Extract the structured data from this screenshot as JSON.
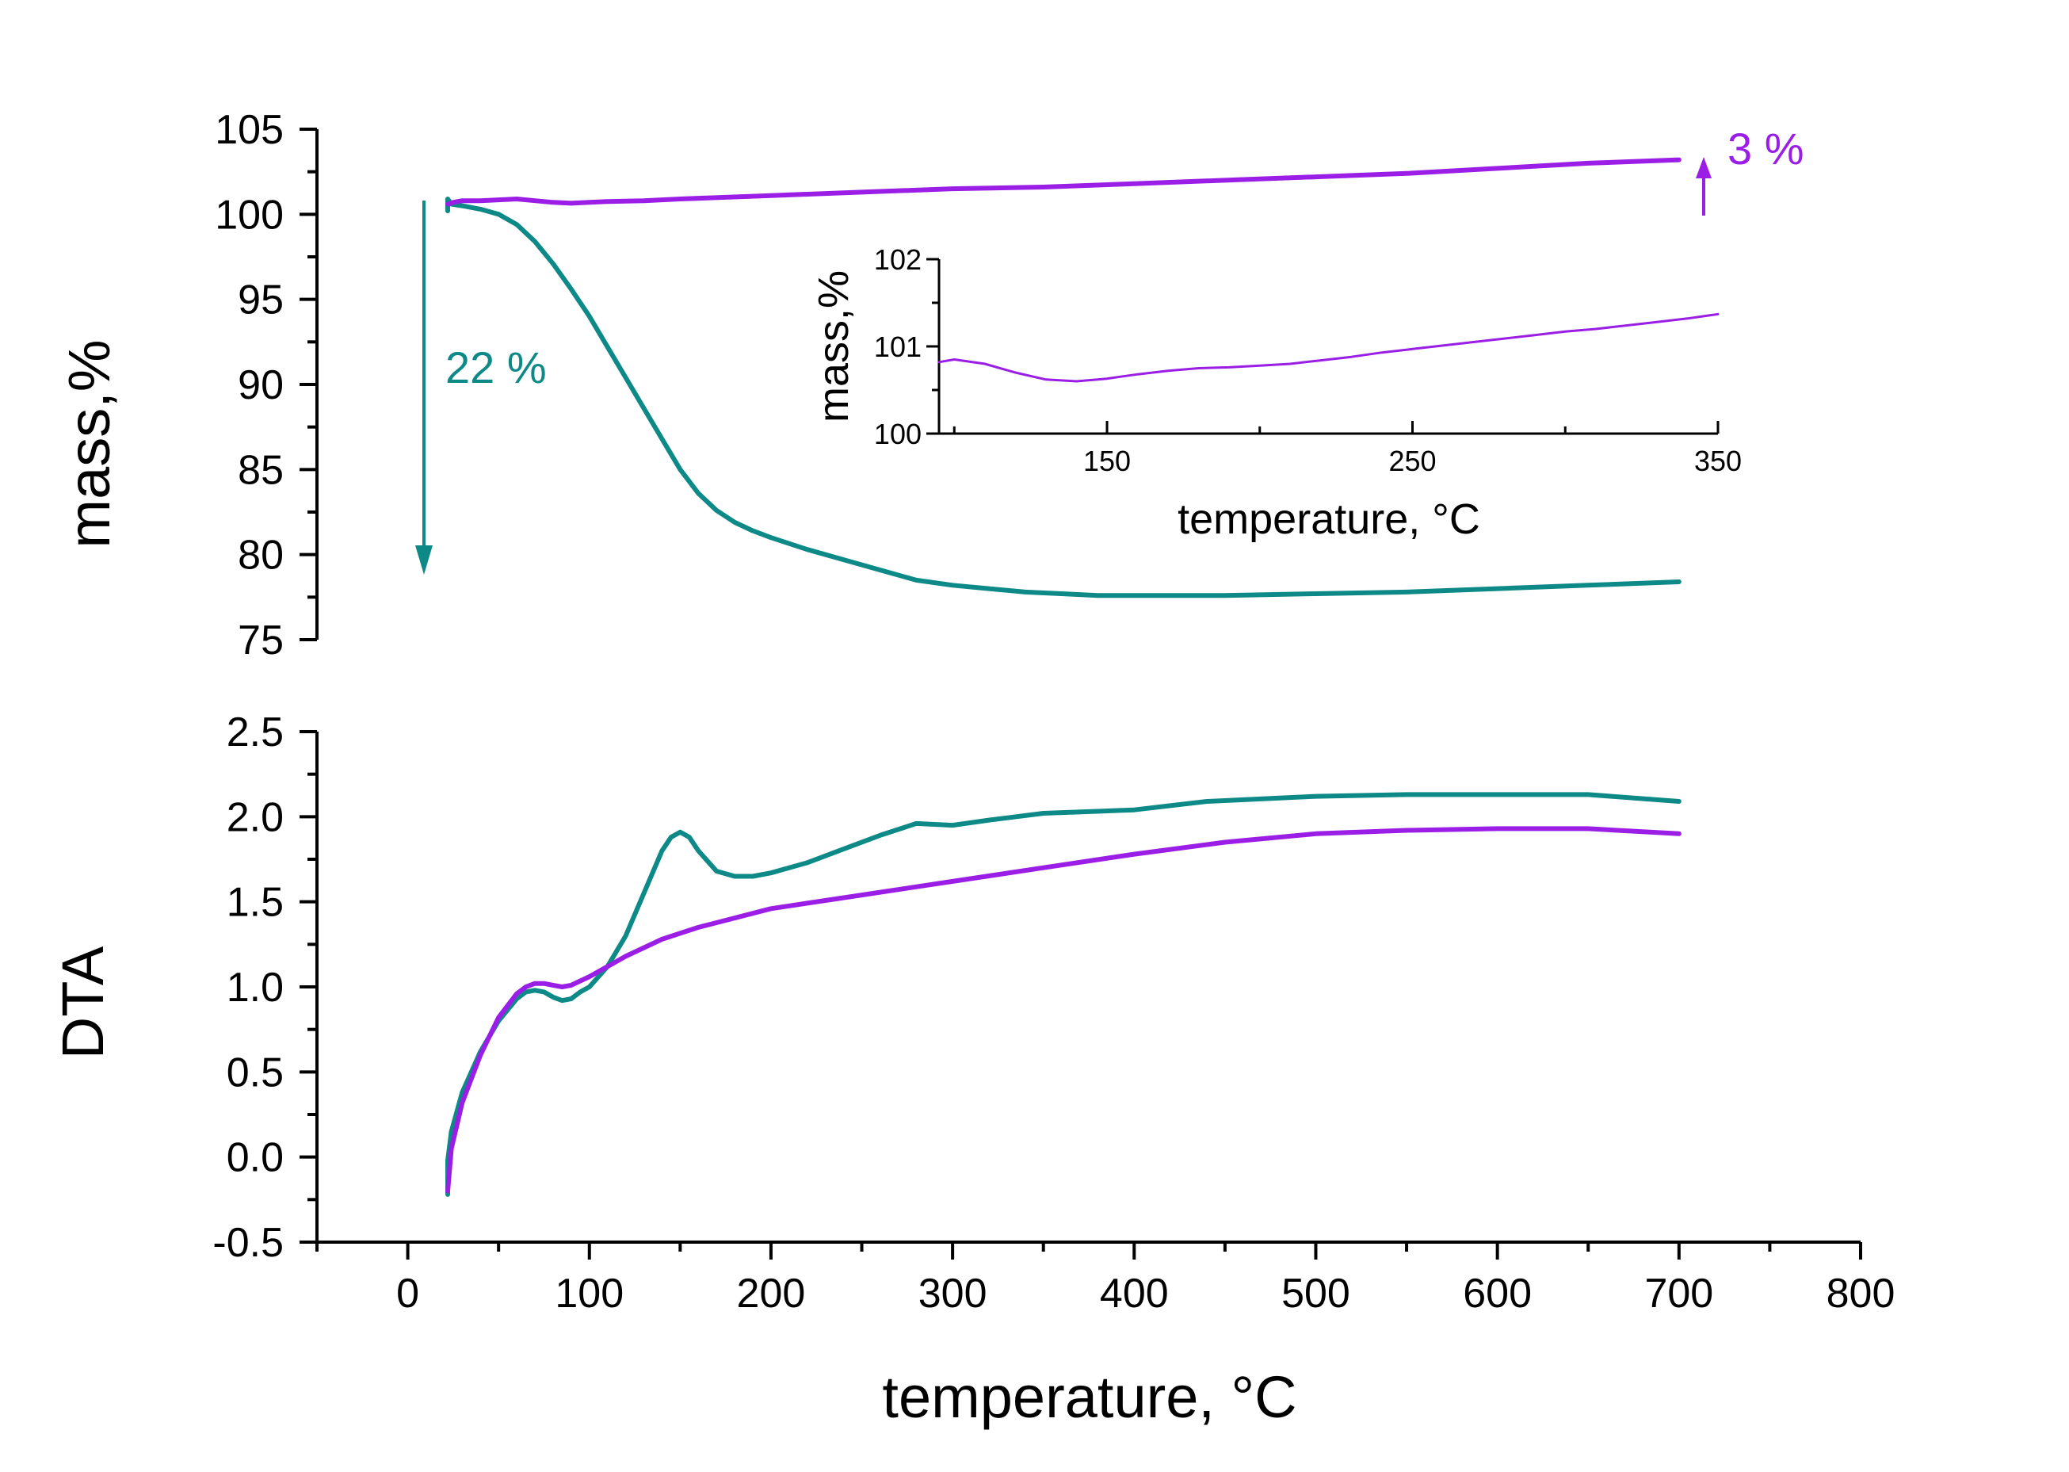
{
  "colors": {
    "teal": "#0d8a87",
    "purple": "#9b1ee6",
    "axis": "#000000"
  },
  "chart_data": [
    {
      "id": "mass",
      "type": "line",
      "xlabel": "",
      "ylabel": "mass,%",
      "xlim": [
        -50,
        800
      ],
      "ylim": [
        75,
        105
      ],
      "yticks": [
        75,
        80,
        85,
        90,
        95,
        100,
        105
      ],
      "series": [
        {
          "name": "teal",
          "color": "#0d8a87",
          "x": [
            22,
            22,
            24,
            30,
            40,
            50,
            60,
            70,
            80,
            90,
            100,
            110,
            120,
            130,
            140,
            150,
            160,
            170,
            180,
            190,
            200,
            220,
            240,
            260,
            280,
            300,
            320,
            340,
            360,
            380,
            400,
            450,
            500,
            550,
            600,
            650,
            700
          ],
          "y": [
            100.2,
            100.9,
            100.6,
            100.5,
            100.3,
            100.0,
            99.4,
            98.4,
            97.1,
            95.6,
            94.0,
            92.2,
            90.4,
            88.6,
            86.8,
            85.0,
            83.6,
            82.6,
            81.9,
            81.4,
            81.0,
            80.3,
            79.7,
            79.1,
            78.5,
            78.2,
            78.0,
            77.8,
            77.7,
            77.6,
            77.6,
            77.6,
            77.7,
            77.8,
            78.0,
            78.2,
            78.4
          ]
        },
        {
          "name": "purple",
          "color": "#9b1ee6",
          "x": [
            22,
            25,
            30,
            40,
            50,
            60,
            70,
            80,
            90,
            100,
            110,
            130,
            150,
            200,
            250,
            300,
            350,
            400,
            450,
            500,
            550,
            600,
            650,
            700
          ],
          "y": [
            100.6,
            100.7,
            100.8,
            100.8,
            100.85,
            100.9,
            100.8,
            100.7,
            100.65,
            100.7,
            100.75,
            100.8,
            100.9,
            101.1,
            101.3,
            101.5,
            101.6,
            101.8,
            102.0,
            102.2,
            102.4,
            102.7,
            103.0,
            103.2
          ]
        }
      ],
      "annotations": [
        {
          "text": "22 %",
          "color": "#0d8a87"
        },
        {
          "text": "3 %",
          "color": "#9b1ee6"
        }
      ]
    },
    {
      "id": "inset",
      "type": "line",
      "xlabel": "temperature, °C",
      "ylabel": "mass,%",
      "xlim": [
        95,
        350
      ],
      "ylim": [
        100,
        102
      ],
      "xticks": [
        150,
        250,
        350
      ],
      "yticks": [
        100,
        101,
        102
      ],
      "series": [
        {
          "name": "purple",
          "color": "#9b1ee6",
          "x": [
            95,
            100,
            110,
            120,
            130,
            140,
            150,
            160,
            170,
            180,
            190,
            200,
            210,
            220,
            230,
            240,
            250,
            260,
            270,
            280,
            290,
            300,
            310,
            320,
            330,
            340,
            350
          ],
          "y": [
            100.82,
            100.85,
            100.8,
            100.7,
            100.62,
            100.6,
            100.63,
            100.68,
            100.72,
            100.75,
            100.76,
            100.78,
            100.8,
            100.84,
            100.88,
            100.93,
            100.97,
            101.01,
            101.05,
            101.09,
            101.13,
            101.17,
            101.2,
            101.24,
            101.28,
            101.32,
            101.37
          ]
        }
      ]
    },
    {
      "id": "dta",
      "type": "line",
      "xlabel": "temperature, °C",
      "ylabel": "DTA",
      "xlim": [
        -50,
        800
      ],
      "ylim": [
        -0.5,
        2.5
      ],
      "xticks": [
        0,
        100,
        200,
        300,
        400,
        500,
        600,
        700,
        800
      ],
      "yticks": [
        -0.5,
        0.0,
        0.5,
        1.0,
        1.5,
        2.0,
        2.5
      ],
      "series": [
        {
          "name": "teal",
          "color": "#0d8a87",
          "x": [
            22,
            22,
            24,
            30,
            40,
            50,
            60,
            65,
            70,
            75,
            80,
            85,
            90,
            95,
            100,
            110,
            120,
            130,
            140,
            145,
            150,
            155,
            160,
            170,
            180,
            190,
            200,
            220,
            240,
            260,
            280,
            300,
            320,
            350,
            400,
            440,
            500,
            550,
            600,
            650,
            700
          ],
          "y": [
            -0.22,
            -0.02,
            0.15,
            0.38,
            0.62,
            0.8,
            0.93,
            0.97,
            0.98,
            0.97,
            0.94,
            0.92,
            0.93,
            0.97,
            1.0,
            1.12,
            1.3,
            1.55,
            1.8,
            1.88,
            1.91,
            1.88,
            1.8,
            1.68,
            1.65,
            1.65,
            1.67,
            1.73,
            1.81,
            1.89,
            1.96,
            1.95,
            1.98,
            2.02,
            2.04,
            2.09,
            2.12,
            2.13,
            2.13,
            2.13,
            2.09
          ]
        },
        {
          "name": "purple",
          "color": "#9b1ee6",
          "x": [
            22,
            24,
            30,
            40,
            50,
            60,
            65,
            70,
            75,
            80,
            85,
            90,
            100,
            120,
            140,
            160,
            200,
            250,
            300,
            350,
            400,
            450,
            500,
            550,
            600,
            650,
            700
          ],
          "y": [
            -0.2,
            0.05,
            0.32,
            0.6,
            0.82,
            0.96,
            1.0,
            1.02,
            1.02,
            1.01,
            1.0,
            1.01,
            1.06,
            1.18,
            1.28,
            1.35,
            1.46,
            1.54,
            1.62,
            1.7,
            1.78,
            1.85,
            1.9,
            1.92,
            1.93,
            1.93,
            1.9
          ]
        }
      ]
    }
  ]
}
